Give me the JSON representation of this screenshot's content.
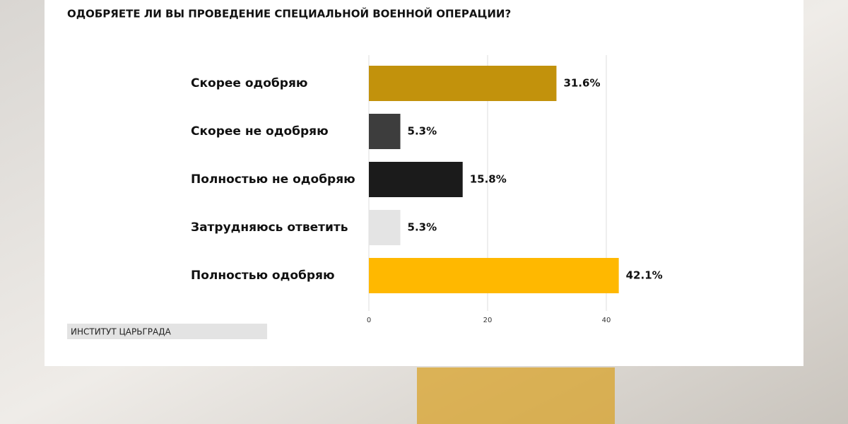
{
  "chart_data": {
    "type": "bar",
    "orientation": "horizontal",
    "title": "ОДОБРЯЕТЕ ЛИ ВЫ ПРОВЕДЕНИЕ СПЕЦИАЛЬНОЙ ВОЕННОЙ ОПЕРАЦИИ?",
    "categories": [
      "Скорее одобряю",
      "Скорее не одобряю",
      "Полностью не одобряю",
      "Затрудняюсь ответить",
      "Полностью одобряю"
    ],
    "values": [
      31.6,
      5.3,
      15.8,
      5.3,
      42.1
    ],
    "value_labels": [
      "31.6%",
      "5.3%",
      "15.8%",
      "5.3%",
      "42.1%"
    ],
    "colors": [
      "#c2920c",
      "#3d3d3d",
      "#1b1b1b",
      "#e4e4e4",
      "#ffb800"
    ],
    "xlim": [
      0,
      45
    ],
    "xticks": [
      0,
      20,
      40
    ],
    "grid": true,
    "source": "ИНСТИТУТ ЦАРЬГРАДА"
  }
}
